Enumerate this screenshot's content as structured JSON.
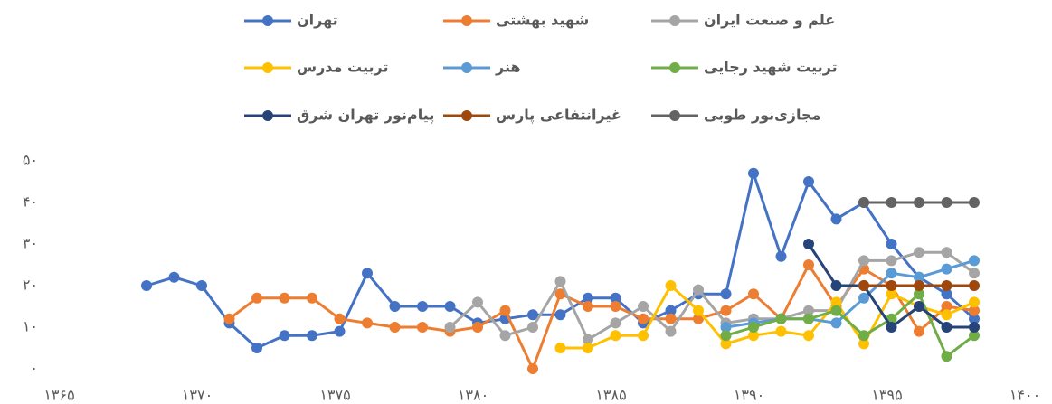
{
  "chart_data": {
    "type": "line",
    "x": [
      1368,
      1369,
      1370,
      1371,
      1372,
      1373,
      1374,
      1375,
      1376,
      1377,
      1378,
      1379,
      1380,
      1381,
      1382,
      1383,
      1384,
      1385,
      1386,
      1387,
      1388,
      1389,
      1390,
      1391,
      1392,
      1393,
      1394,
      1395,
      1396,
      1397,
      1398
    ],
    "series": [
      {
        "name": "تهران",
        "color": "#4472c4",
        "values": [
          20,
          22,
          20,
          11,
          5,
          8,
          8,
          9,
          23,
          15,
          15,
          15,
          11,
          12,
          13,
          13,
          17,
          17,
          11,
          14,
          18,
          18,
          47,
          27,
          45,
          36,
          40,
          30,
          22,
          18,
          12
        ]
      },
      {
        "name": "شهید بهشتی",
        "color": "#ed7d31",
        "values": [
          null,
          null,
          null,
          12,
          17,
          17,
          17,
          12,
          11,
          10,
          10,
          9,
          10,
          14,
          0,
          18,
          15,
          15,
          12,
          12,
          12,
          14,
          18,
          12,
          25,
          15,
          24,
          20,
          9,
          15,
          14
        ]
      },
      {
        "name": "علم و صنعت ایران",
        "color": "#a5a5a5",
        "values": [
          null,
          null,
          null,
          null,
          null,
          null,
          null,
          null,
          null,
          null,
          null,
          10,
          16,
          8,
          10,
          21,
          7,
          11,
          15,
          9,
          19,
          11,
          12,
          12,
          14,
          14,
          26,
          26,
          28,
          28,
          23
        ]
      },
      {
        "name": "تربیت مدرس",
        "color": "#ffc000",
        "values": [
          null,
          null,
          null,
          null,
          null,
          null,
          null,
          null,
          null,
          null,
          null,
          null,
          null,
          null,
          null,
          5,
          5,
          8,
          8,
          20,
          14,
          6,
          8,
          9,
          8,
          16,
          6,
          18,
          15,
          13,
          16
        ]
      },
      {
        "name": "هنر",
        "color": "#5b9bd5",
        "values": [
          null,
          null,
          null,
          null,
          null,
          null,
          null,
          null,
          null,
          null,
          null,
          null,
          null,
          null,
          null,
          null,
          null,
          null,
          null,
          null,
          null,
          10,
          11,
          12,
          12,
          11,
          17,
          23,
          22,
          24,
          26
        ]
      },
      {
        "name": "تربیت شهید رجایی",
        "color": "#70ad47",
        "values": [
          null,
          null,
          null,
          null,
          null,
          null,
          null,
          null,
          null,
          null,
          null,
          null,
          null,
          null,
          null,
          null,
          null,
          null,
          null,
          null,
          null,
          8,
          10,
          12,
          12,
          14,
          8,
          12,
          18,
          3,
          8
        ]
      },
      {
        "name": "پیام‌نور تهران شرق",
        "color": "#264478",
        "values": [
          null,
          null,
          null,
          null,
          null,
          null,
          null,
          null,
          null,
          null,
          null,
          null,
          null,
          null,
          null,
          null,
          null,
          null,
          null,
          null,
          null,
          null,
          null,
          null,
          30,
          20,
          20,
          10,
          15,
          10,
          10
        ]
      },
      {
        "name": "غیرانتفاعی پارس",
        "color": "#9e480e",
        "values": [
          null,
          null,
          null,
          null,
          null,
          null,
          null,
          null,
          null,
          null,
          null,
          null,
          null,
          null,
          null,
          null,
          null,
          null,
          null,
          null,
          null,
          null,
          null,
          null,
          null,
          null,
          20,
          20,
          20,
          20,
          20
        ]
      },
      {
        "name": "مجازی‌نور طوبی",
        "color": "#636363",
        "values": [
          null,
          null,
          null,
          null,
          null,
          null,
          null,
          null,
          null,
          null,
          null,
          null,
          null,
          null,
          null,
          null,
          null,
          null,
          null,
          null,
          null,
          null,
          null,
          null,
          null,
          null,
          40,
          40,
          40,
          40,
          40
        ]
      }
    ],
    "xlim": [
      1365,
      1400
    ],
    "xticks": [
      {
        "value": 1365,
        "label": "۱۳۶۵"
      },
      {
        "value": 1370,
        "label": "۱۳۷۰"
      },
      {
        "value": 1375,
        "label": "۱۳۷۵"
      },
      {
        "value": 1380,
        "label": "۱۳۸۰"
      },
      {
        "value": 1385,
        "label": "۱۳۸۵"
      },
      {
        "value": 1390,
        "label": "۱۳۹۰"
      },
      {
        "value": 1395,
        "label": "۱۳۹۵"
      },
      {
        "value": 1400,
        "label": "۱۴۰۰"
      }
    ],
    "ylim": [
      0,
      50
    ],
    "yticks": [
      {
        "value": 0,
        "label": "۰"
      },
      {
        "value": 10,
        "label": "۱۰"
      },
      {
        "value": 20,
        "label": "۲۰"
      },
      {
        "value": 30,
        "label": "۳۰"
      },
      {
        "value": 40,
        "label": "۴۰"
      },
      {
        "value": 50,
        "label": "۵۰"
      }
    ],
    "grid": false,
    "legend": "top"
  }
}
